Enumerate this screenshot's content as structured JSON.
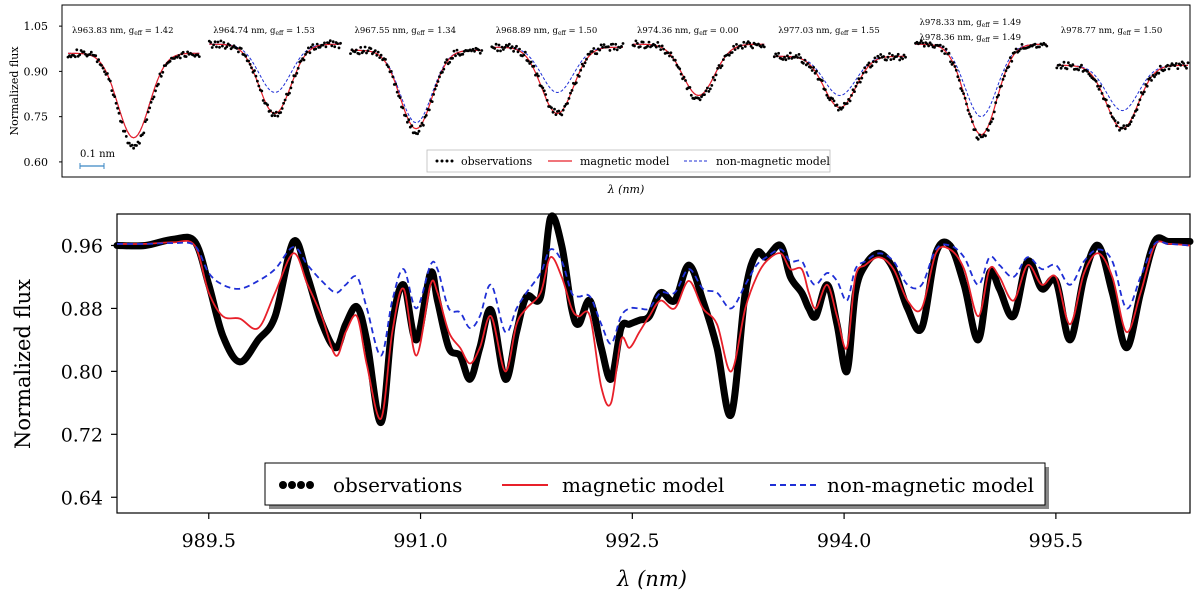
{
  "chart_data": [
    {
      "type": "line",
      "xlabel": "λ (nm)",
      "ylabel": "Normalized flux",
      "ylim": [
        0.55,
        1.12
      ],
      "yticks": [
        "1.05",
        "0.90",
        "0.75",
        "0.60"
      ],
      "ytick_values": [
        1.05,
        0.9,
        0.75,
        0.6
      ],
      "scale_bar_label": "0.1 nm",
      "legend": {
        "placement": "bottom-center",
        "entries": [
          "observations",
          "magnetic model",
          "non-magnetic model"
        ]
      },
      "series_colors": {
        "observations": "#000000",
        "magnetic model": "#e8202a",
        "non-magnetic model": "#1f2fd6"
      },
      "panels": [
        {
          "label": "λ963.83 nm, g_eff = 1.42",
          "label_parts": [
            "λ963.83 nm, g",
            "eff",
            " = 1.42"
          ],
          "continuum": 0.96,
          "depth_obs": 0.31,
          "depth_mag": 0.28,
          "depth_nonmag": 0.28
        },
        {
          "label": "λ964.74 nm, g_eff = 1.53",
          "label_parts": [
            "λ964.74 nm, g",
            "eff",
            " = 1.53"
          ],
          "continuum": 0.99,
          "depth_obs": 0.23,
          "depth_mag": 0.23,
          "depth_nonmag": 0.16
        },
        {
          "label": "λ967.55 nm, g_eff = 1.34",
          "label_parts": [
            "λ967.55 nm, g",
            "eff",
            " = 1.34"
          ],
          "continuum": 0.97,
          "depth_obs": 0.27,
          "depth_mag": 0.26,
          "depth_nonmag": 0.24
        },
        {
          "label": "λ968.89 nm, g_eff = 1.50",
          "label_parts": [
            "λ968.89 nm, g",
            "eff",
            " = 1.50"
          ],
          "continuum": 0.98,
          "depth_obs": 0.22,
          "depth_mag": 0.22,
          "depth_nonmag": 0.15
        },
        {
          "label": "λ974.36 nm, g_eff = 0.00",
          "label_parts": [
            "λ974.36 nm, g",
            "eff",
            " = 0.00"
          ],
          "continuum": 0.99,
          "depth_obs": 0.18,
          "depth_mag": 0.17,
          "depth_nonmag": 0.17
        },
        {
          "label": "λ977.03 nm, g_eff = 1.55",
          "label_parts": [
            "λ977.03 nm, g",
            "eff",
            " = 1.55"
          ],
          "continuum": 0.95,
          "depth_obs": 0.17,
          "depth_mag": 0.17,
          "depth_nonmag": 0.13
        },
        {
          "label": "λ978.33 nm, g_eff = 1.49 / λ978.36 nm, g_eff = 1.49",
          "label_parts": [
            "λ978.33 nm, g",
            "eff",
            " = 1.49"
          ],
          "label_parts2": [
            "λ978.36 nm, g",
            "eff",
            " = 1.49"
          ],
          "continuum": 0.99,
          "depth_obs": 0.31,
          "depth_mag": 0.3,
          "depth_nonmag": 0.24
        },
        {
          "label": "λ978.77 nm, g_eff = 1.50",
          "label_parts": [
            "λ978.77 nm, g",
            "eff",
            " = 1.50"
          ],
          "continuum": 0.92,
          "depth_obs": 0.21,
          "depth_mag": 0.21,
          "depth_nonmag": 0.15
        }
      ]
    },
    {
      "type": "line",
      "xlabel": "λ (nm)",
      "ylabel": "Normalized flux",
      "xlim": [
        988.85,
        996.45
      ],
      "ylim": [
        0.62,
        1.0
      ],
      "xticks": [
        989.5,
        991.0,
        992.5,
        994.0,
        995.5
      ],
      "xtick_labels": [
        "989.5",
        "991.0",
        "992.5",
        "994.0",
        "995.5"
      ],
      "yticks": [
        0.96,
        0.88,
        0.8,
        0.72,
        0.64
      ],
      "ytick_labels": [
        "0.96",
        "0.88",
        "0.80",
        "0.72",
        "0.64"
      ],
      "legend": {
        "placement": "bottom-center",
        "entries": [
          "observations",
          "magnetic model",
          "non-magnetic model"
        ]
      },
      "series_colors": {
        "observations": "#000000",
        "magnetic model": "#e8202a",
        "non-magnetic model": "#1f2fd6"
      },
      "series": [
        {
          "name": "observations",
          "x": [
            988.85,
            989.05,
            989.25,
            989.4,
            989.5,
            989.6,
            989.72,
            989.85,
            989.97,
            990.1,
            990.2,
            990.3,
            990.4,
            990.47,
            990.55,
            990.62,
            990.72,
            990.8,
            990.88,
            990.97,
            991.07,
            991.12,
            991.2,
            991.28,
            991.35,
            991.42,
            991.5,
            991.6,
            991.68,
            991.75,
            991.85,
            991.92,
            992.0,
            992.07,
            992.12,
            992.2,
            992.28,
            992.35,
            992.42,
            992.48,
            992.55,
            992.62,
            992.7,
            992.8,
            992.9,
            993.0,
            993.1,
            993.2,
            993.3,
            993.38,
            993.45,
            993.55,
            993.62,
            993.7,
            993.75,
            993.8,
            993.88,
            993.95,
            994.02,
            994.08,
            994.15,
            994.25,
            994.35,
            994.45,
            994.55,
            994.65,
            994.75,
            994.85,
            994.95,
            995.03,
            995.1,
            995.2,
            995.3,
            995.4,
            995.5,
            995.6,
            995.7,
            995.8,
            995.9,
            996.0,
            996.1,
            996.2,
            996.3,
            996.45
          ],
          "y": [
            0.96,
            0.96,
            0.968,
            0.965,
            0.91,
            0.845,
            0.812,
            0.84,
            0.87,
            0.965,
            0.92,
            0.862,
            0.83,
            0.86,
            0.882,
            0.838,
            0.735,
            0.86,
            0.91,
            0.84,
            0.925,
            0.89,
            0.83,
            0.82,
            0.79,
            0.83,
            0.878,
            0.79,
            0.85,
            0.895,
            0.895,
            0.995,
            0.96,
            0.88,
            0.86,
            0.89,
            0.83,
            0.79,
            0.855,
            0.86,
            0.865,
            0.87,
            0.9,
            0.89,
            0.935,
            0.89,
            0.83,
            0.745,
            0.9,
            0.95,
            0.945,
            0.96,
            0.92,
            0.9,
            0.88,
            0.87,
            0.91,
            0.86,
            0.8,
            0.9,
            0.935,
            0.95,
            0.93,
            0.88,
            0.855,
            0.95,
            0.96,
            0.91,
            0.84,
            0.925,
            0.905,
            0.87,
            0.94,
            0.905,
            0.915,
            0.84,
            0.92,
            0.96,
            0.9,
            0.83,
            0.9,
            0.965,
            0.965,
            0.965
          ]
        },
        {
          "name": "magnetic model",
          "x": [
            988.85,
            989.05,
            989.25,
            989.4,
            989.5,
            989.6,
            989.72,
            989.85,
            989.97,
            990.1,
            990.2,
            990.3,
            990.4,
            990.47,
            990.55,
            990.62,
            990.72,
            990.8,
            990.88,
            990.97,
            991.07,
            991.12,
            991.2,
            991.28,
            991.35,
            991.42,
            991.5,
            991.6,
            991.68,
            991.75,
            991.85,
            991.92,
            992.0,
            992.07,
            992.12,
            992.2,
            992.28,
            992.35,
            992.42,
            992.48,
            992.55,
            992.62,
            992.7,
            992.8,
            992.9,
            993.0,
            993.1,
            993.2,
            993.3,
            993.38,
            993.45,
            993.55,
            993.62,
            993.7,
            993.75,
            993.8,
            993.88,
            993.95,
            994.02,
            994.08,
            994.15,
            994.25,
            994.35,
            994.45,
            994.55,
            994.65,
            994.75,
            994.85,
            994.95,
            995.03,
            995.1,
            995.2,
            995.3,
            995.4,
            995.5,
            995.6,
            995.7,
            995.8,
            995.9,
            996.0,
            996.1,
            996.2,
            996.3,
            996.45
          ],
          "y": [
            0.962,
            0.962,
            0.964,
            0.96,
            0.9,
            0.87,
            0.867,
            0.855,
            0.9,
            0.95,
            0.91,
            0.87,
            0.82,
            0.85,
            0.87,
            0.808,
            0.74,
            0.85,
            0.905,
            0.82,
            0.91,
            0.9,
            0.85,
            0.83,
            0.81,
            0.83,
            0.87,
            0.8,
            0.86,
            0.88,
            0.9,
            0.945,
            0.92,
            0.88,
            0.87,
            0.87,
            0.78,
            0.76,
            0.84,
            0.83,
            0.85,
            0.87,
            0.89,
            0.88,
            0.915,
            0.88,
            0.86,
            0.8,
            0.88,
            0.92,
            0.94,
            0.95,
            0.93,
            0.93,
            0.9,
            0.88,
            0.91,
            0.87,
            0.83,
            0.92,
            0.935,
            0.945,
            0.93,
            0.89,
            0.88,
            0.95,
            0.955,
            0.93,
            0.87,
            0.93,
            0.92,
            0.89,
            0.935,
            0.91,
            0.92,
            0.86,
            0.925,
            0.95,
            0.92,
            0.85,
            0.9,
            0.96,
            0.962,
            0.96
          ]
        },
        {
          "name": "non-magnetic model",
          "x": [
            988.85,
            989.05,
            989.25,
            989.4,
            989.5,
            989.6,
            989.72,
            989.85,
            989.97,
            990.1,
            990.2,
            990.3,
            990.4,
            990.47,
            990.55,
            990.62,
            990.72,
            990.8,
            990.88,
            990.97,
            991.07,
            991.12,
            991.2,
            991.28,
            991.35,
            991.42,
            991.5,
            991.6,
            991.68,
            991.75,
            991.85,
            991.92,
            992.0,
            992.07,
            992.12,
            992.2,
            992.28,
            992.35,
            992.42,
            992.48,
            992.55,
            992.62,
            992.7,
            992.8,
            992.9,
            993.0,
            993.1,
            993.2,
            993.3,
            993.38,
            993.45,
            993.55,
            993.62,
            993.7,
            993.75,
            993.8,
            993.88,
            993.95,
            994.02,
            994.08,
            994.15,
            994.25,
            994.35,
            994.45,
            994.55,
            994.65,
            994.75,
            994.85,
            994.95,
            995.03,
            995.1,
            995.2,
            995.3,
            995.4,
            995.5,
            995.6,
            995.7,
            995.8,
            995.9,
            996.0,
            996.1,
            996.2,
            996.3,
            996.45
          ],
          "y": [
            0.962,
            0.962,
            0.963,
            0.96,
            0.925,
            0.91,
            0.905,
            0.915,
            0.93,
            0.958,
            0.935,
            0.915,
            0.9,
            0.91,
            0.92,
            0.88,
            0.82,
            0.89,
            0.93,
            0.88,
            0.935,
            0.93,
            0.88,
            0.875,
            0.855,
            0.87,
            0.91,
            0.85,
            0.88,
            0.9,
            0.925,
            0.955,
            0.94,
            0.9,
            0.895,
            0.895,
            0.86,
            0.835,
            0.87,
            0.88,
            0.88,
            0.88,
            0.9,
            0.9,
            0.93,
            0.905,
            0.9,
            0.88,
            0.91,
            0.935,
            0.945,
            0.955,
            0.94,
            0.94,
            0.92,
            0.91,
            0.925,
            0.915,
            0.89,
            0.93,
            0.94,
            0.95,
            0.94,
            0.91,
            0.91,
            0.955,
            0.96,
            0.945,
            0.91,
            0.945,
            0.935,
            0.92,
            0.945,
            0.93,
            0.935,
            0.91,
            0.94,
            0.955,
            0.94,
            0.88,
            0.92,
            0.962,
            0.962,
            0.96
          ]
        }
      ]
    }
  ]
}
